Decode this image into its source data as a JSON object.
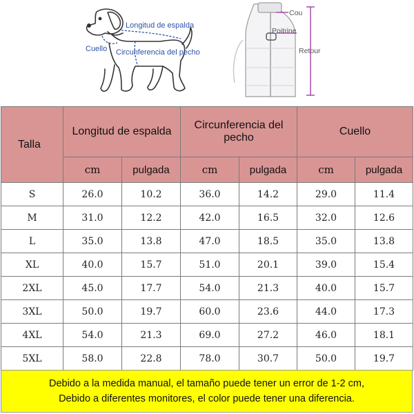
{
  "dog_labels": {
    "back": "Longitud de espalda",
    "neck": "Cuello",
    "chest": "Circunferencia del pecho"
  },
  "coat_labels": {
    "neck": "Cou",
    "chest": "Poitrine",
    "back": "Retour"
  },
  "table": {
    "headers": {
      "size": "Talla",
      "back": "Longitud de espalda",
      "chest": "Circunferencia del pecho",
      "neck": "Cuello"
    },
    "units": [
      "cm",
      "pulgada",
      "cm",
      "pulgada",
      "cm",
      "pulgada"
    ],
    "rows": [
      {
        "size": "S",
        "cells": [
          "26.0",
          "10.2",
          "36.0",
          "14.2",
          "29.0",
          "11.4"
        ]
      },
      {
        "size": "M",
        "cells": [
          "31.0",
          "12.2",
          "42.0",
          "16.5",
          "32.0",
          "12.6"
        ]
      },
      {
        "size": "L",
        "cells": [
          "35.0",
          "13.8",
          "47.0",
          "18.5",
          "35.0",
          "13.8"
        ]
      },
      {
        "size": "XL",
        "cells": [
          "40.0",
          "15.7",
          "51.0",
          "20.1",
          "39.0",
          "15.4"
        ]
      },
      {
        "size": "2XL",
        "cells": [
          "45.0",
          "17.7",
          "54.0",
          "21.3",
          "40.0",
          "15.7"
        ]
      },
      {
        "size": "3XL",
        "cells": [
          "50.0",
          "19.7",
          "60.0",
          "23.6",
          "44.0",
          "17.3"
        ]
      },
      {
        "size": "4XL",
        "cells": [
          "54.0",
          "21.3",
          "69.0",
          "27.2",
          "46.0",
          "18.1"
        ]
      },
      {
        "size": "5XL",
        "cells": [
          "58.0",
          "22.8",
          "78.0",
          "30.7",
          "50.0",
          "19.7"
        ]
      }
    ]
  },
  "note": {
    "line1": "Debido a la medida manual, el tamaño puede tener un error de 1-2 cm,",
    "line2": "Debido a diferentes monitores, el color puede tener una diferencia."
  },
  "colors": {
    "header_bg": "#d99594",
    "note_bg": "#ffff00",
    "measure_line": "#2d52a8",
    "coat_arrow": "#9b2f9b"
  }
}
